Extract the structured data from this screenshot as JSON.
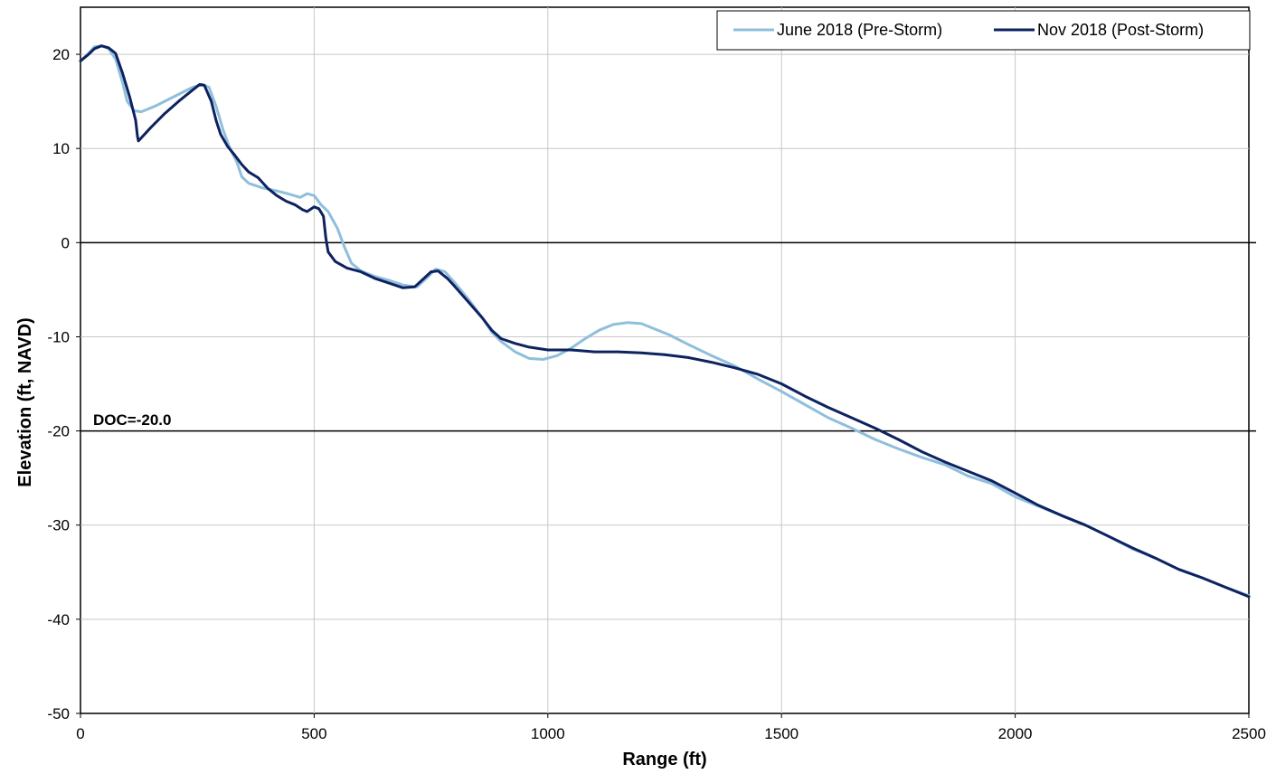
{
  "chart_data": {
    "type": "line",
    "title": "",
    "xlabel": "Range (ft)",
    "ylabel": "Elevation (ft, NAVD)",
    "xlim": [
      0,
      2500
    ],
    "ylim": [
      -50,
      25
    ],
    "x_ticks": [
      0,
      500,
      1000,
      1500,
      2000,
      2500
    ],
    "y_ticks": [
      20,
      10,
      0,
      -10,
      -20,
      -30,
      -40,
      -50
    ],
    "x_tick_labels": [
      "0",
      "500",
      "1000",
      "1500",
      "2000",
      "2500"
    ],
    "y_tick_labels": [
      "20",
      "10",
      "0",
      "-10",
      "-20",
      "-30",
      "-40",
      "-50"
    ],
    "grid": true,
    "legend_position": "top-right",
    "reference_lines": [
      {
        "y": 0,
        "label": ""
      },
      {
        "y": -20,
        "label": "DOC=-20.0"
      }
    ],
    "series": [
      {
        "name": "June 2018 (Pre-Storm)",
        "color": "#8fbfdc",
        "points": [
          [
            0,
            19.3
          ],
          [
            15,
            20
          ],
          [
            30,
            20.8
          ],
          [
            45,
            20.9
          ],
          [
            60,
            20.6
          ],
          [
            75,
            19.5
          ],
          [
            90,
            17
          ],
          [
            100,
            15
          ],
          [
            115,
            14
          ],
          [
            130,
            13.9
          ],
          [
            160,
            14.5
          ],
          [
            200,
            15.5
          ],
          [
            240,
            16.5
          ],
          [
            260,
            16.8
          ],
          [
            275,
            16.5
          ],
          [
            290,
            14.5
          ],
          [
            305,
            12
          ],
          [
            320,
            10
          ],
          [
            335,
            8.5
          ],
          [
            345,
            7
          ],
          [
            360,
            6.3
          ],
          [
            390,
            5.8
          ],
          [
            420,
            5.5
          ],
          [
            450,
            5.1
          ],
          [
            470,
            4.8
          ],
          [
            485,
            5.2
          ],
          [
            500,
            5.0
          ],
          [
            515,
            4
          ],
          [
            530,
            3.3
          ],
          [
            550,
            1.5
          ],
          [
            565,
            -0.5
          ],
          [
            580,
            -2.2
          ],
          [
            600,
            -3
          ],
          [
            630,
            -3.6
          ],
          [
            660,
            -4
          ],
          [
            690,
            -4.5
          ],
          [
            720,
            -4.7
          ],
          [
            740,
            -3.8
          ],
          [
            760,
            -2.8
          ],
          [
            780,
            -3.1
          ],
          [
            800,
            -4.2
          ],
          [
            830,
            -6
          ],
          [
            860,
            -8
          ],
          [
            880,
            -9.5
          ],
          [
            900,
            -10.5
          ],
          [
            930,
            -11.6
          ],
          [
            960,
            -12.3
          ],
          [
            990,
            -12.4
          ],
          [
            1020,
            -12
          ],
          [
            1050,
            -11.2
          ],
          [
            1080,
            -10.2
          ],
          [
            1110,
            -9.3
          ],
          [
            1140,
            -8.7
          ],
          [
            1170,
            -8.5
          ],
          [
            1200,
            -8.6
          ],
          [
            1230,
            -9.2
          ],
          [
            1260,
            -9.8
          ],
          [
            1300,
            -10.8
          ],
          [
            1350,
            -12
          ],
          [
            1400,
            -13.1
          ],
          [
            1450,
            -14.5
          ],
          [
            1500,
            -15.8
          ],
          [
            1550,
            -17.2
          ],
          [
            1600,
            -18.6
          ],
          [
            1650,
            -19.7
          ],
          [
            1700,
            -20.9
          ],
          [
            1750,
            -21.9
          ],
          [
            1800,
            -22.8
          ],
          [
            1850,
            -23.6
          ],
          [
            1900,
            -24.8
          ],
          [
            1950,
            -25.6
          ],
          [
            2000,
            -27
          ],
          [
            2050,
            -28
          ],
          [
            2100,
            -29
          ],
          [
            2150,
            -30
          ],
          [
            2200,
            -31.2
          ],
          [
            2250,
            -32.5
          ],
          [
            2300,
            -33.5
          ],
          [
            2350,
            -34.7
          ],
          [
            2400,
            -35.6
          ],
          [
            2450,
            -36.6
          ],
          [
            2500,
            -37.5
          ]
        ]
      },
      {
        "name": "Nov 2018 (Post-Storm)",
        "color": "#0d2260",
        "points": [
          [
            0,
            19.3
          ],
          [
            15,
            19.9
          ],
          [
            30,
            20.6
          ],
          [
            45,
            20.9
          ],
          [
            60,
            20.7
          ],
          [
            75,
            20.1
          ],
          [
            90,
            18
          ],
          [
            105,
            15.5
          ],
          [
            118,
            13
          ],
          [
            122,
            11.3
          ],
          [
            124,
            10.8
          ],
          [
            150,
            12.2
          ],
          [
            180,
            13.7
          ],
          [
            210,
            15
          ],
          [
            240,
            16.2
          ],
          [
            255,
            16.8
          ],
          [
            265,
            16.7
          ],
          [
            280,
            15
          ],
          [
            290,
            13
          ],
          [
            300,
            11.5
          ],
          [
            315,
            10.2
          ],
          [
            330,
            9.3
          ],
          [
            345,
            8.3
          ],
          [
            360,
            7.5
          ],
          [
            380,
            6.9
          ],
          [
            400,
            5.8
          ],
          [
            420,
            5
          ],
          [
            440,
            4.4
          ],
          [
            460,
            4
          ],
          [
            475,
            3.5
          ],
          [
            485,
            3.3
          ],
          [
            500,
            3.8
          ],
          [
            510,
            3.6
          ],
          [
            520,
            2.8
          ],
          [
            525,
            0.5
          ],
          [
            530,
            -1
          ],
          [
            545,
            -2
          ],
          [
            570,
            -2.7
          ],
          [
            600,
            -3.1
          ],
          [
            630,
            -3.8
          ],
          [
            660,
            -4.3
          ],
          [
            690,
            -4.8
          ],
          [
            715,
            -4.7
          ],
          [
            735,
            -3.8
          ],
          [
            750,
            -3.1
          ],
          [
            765,
            -3
          ],
          [
            785,
            -3.8
          ],
          [
            800,
            -4.6
          ],
          [
            830,
            -6.3
          ],
          [
            860,
            -8
          ],
          [
            880,
            -9.3
          ],
          [
            900,
            -10.2
          ],
          [
            930,
            -10.7
          ],
          [
            960,
            -11.1
          ],
          [
            1000,
            -11.4
          ],
          [
            1050,
            -11.4
          ],
          [
            1100,
            -11.6
          ],
          [
            1150,
            -11.6
          ],
          [
            1200,
            -11.7
          ],
          [
            1250,
            -11.9
          ],
          [
            1300,
            -12.2
          ],
          [
            1350,
            -12.7
          ],
          [
            1400,
            -13.3
          ],
          [
            1450,
            -14
          ],
          [
            1500,
            -15
          ],
          [
            1550,
            -16.3
          ],
          [
            1600,
            -17.5
          ],
          [
            1650,
            -18.6
          ],
          [
            1700,
            -19.7
          ],
          [
            1750,
            -20.9
          ],
          [
            1800,
            -22.2
          ],
          [
            1850,
            -23.3
          ],
          [
            1900,
            -24.3
          ],
          [
            1950,
            -25.3
          ],
          [
            2000,
            -26.6
          ],
          [
            2050,
            -27.9
          ],
          [
            2100,
            -29
          ],
          [
            2150,
            -30
          ],
          [
            2200,
            -31.2
          ],
          [
            2250,
            -32.4
          ],
          [
            2300,
            -33.5
          ],
          [
            2350,
            -34.7
          ],
          [
            2400,
            -35.6
          ],
          [
            2450,
            -36.6
          ],
          [
            2500,
            -37.6
          ]
        ]
      }
    ]
  }
}
